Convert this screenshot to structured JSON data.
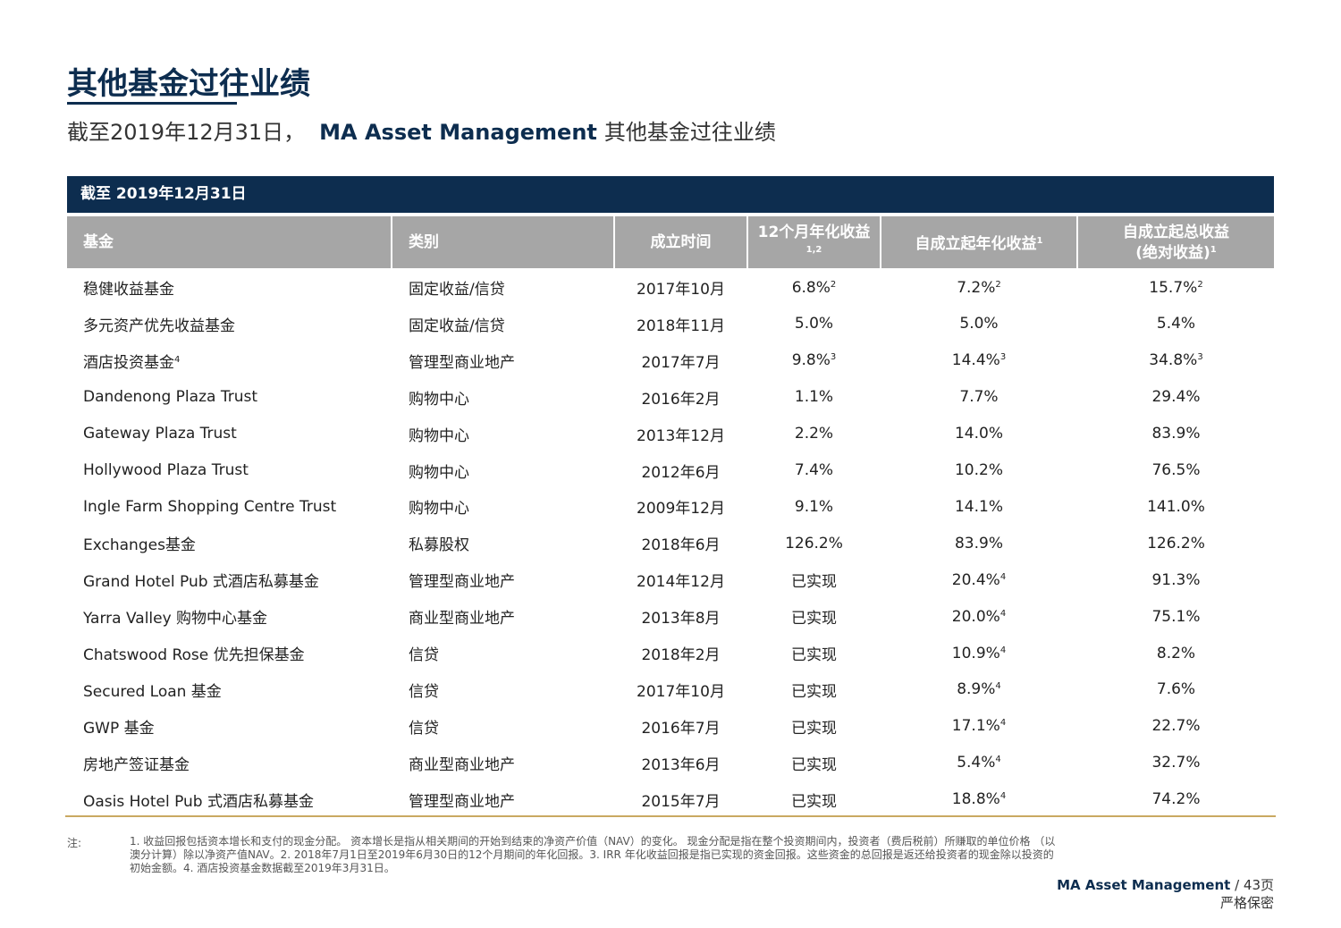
{
  "title": "其他基金过往业绩",
  "subtitle": [
    "截至2019年12月31日，",
    "MA Asset Management",
    "其他基金过往业绩"
  ],
  "table": {
    "banner": "截至 2019年12月31日",
    "header": [
      "基金",
      "类别",
      "成立时间",
      {
        "text": "12个月年化收益",
        "sup": "1,2"
      },
      {
        "text": "自成立起年化收益",
        "sup": "1"
      },
      {
        "lines": [
          "自成立起总收益",
          "(绝对收益)"
        ],
        "sup": "1"
      }
    ],
    "rows": [
      [
        {
          "text": "稳健收益基金"
        },
        "固定收益/信贷",
        "2017年10月",
        {
          "text": "6.8%",
          "sup": "2"
        },
        {
          "text": "7.2%",
          "sup": "2"
        },
        {
          "text": "15.7%",
          "sup": "2"
        }
      ],
      [
        "多元资产优先收益基金",
        "固定收益/信贷",
        "2018年11月",
        "5.0%",
        "5.0%",
        "5.4%"
      ],
      [
        {
          "text": "酒店投资基金",
          "sup": "4"
        },
        "管理型商业地产",
        "2017年7月",
        {
          "text": "9.8%",
          "sup": "3"
        },
        {
          "text": "14.4%",
          "sup": "3"
        },
        {
          "text": "34.8%",
          "sup": "3"
        }
      ],
      [
        "Dandenong Plaza Trust",
        "购物中心",
        "2016年2月",
        "1.1%",
        "7.7%",
        "29.4%"
      ],
      [
        "Gateway Plaza Trust",
        "购物中心",
        "2013年12月",
        "2.2%",
        "14.0%",
        "83.9%"
      ],
      [
        "Hollywood Plaza Trust",
        "购物中心",
        "2012年6月",
        "7.4%",
        "10.2%",
        "76.5%"
      ],
      [
        "Ingle Farm Shopping Centre Trust",
        "购物中心",
        "2009年12月",
        "9.1%",
        "14.1%",
        "141.0%"
      ],
      [
        "Exchanges基金",
        "私募股权",
        "2018年6月",
        "126.2%",
        "83.9%",
        "126.2%"
      ],
      [
        "Grand Hotel Pub 式酒店私募基金",
        "管理型商业地产",
        "2014年12月",
        "已实现",
        {
          "text": "20.4%",
          "sup": "4"
        },
        "91.3%"
      ],
      [
        "Yarra Valley 购物中心基金",
        "商业型商业地产",
        "2013年8月",
        "已实现",
        {
          "text": "20.0%",
          "sup": "4"
        },
        "75.1%"
      ],
      [
        "Chatswood Rose 优先担保基金",
        "信贷",
        "2018年2月",
        "已实现",
        {
          "text": "10.9%",
          "sup": "4"
        },
        "8.2%"
      ],
      [
        "Secured Loan 基金",
        "信贷",
        "2017年10月",
        "已实现",
        {
          "text": "8.9%",
          "sup": "4"
        },
        "7.6%"
      ],
      [
        "GWP 基金",
        "信贷",
        "2016年7月",
        "已实现",
        {
          "text": "17.1%",
          "sup": "4"
        },
        "22.7%"
      ],
      [
        "房地产签证基金",
        "商业型商业地产",
        "2013年6月",
        "已实现",
        {
          "text": "5.4%",
          "sup": "4"
        },
        "32.7%"
      ],
      [
        "Oasis Hotel Pub 式酒店私募基金",
        "管理型商业地产",
        "2015年7月",
        "已实现",
        {
          "text": "18.8%",
          "sup": "4"
        },
        "74.2%"
      ]
    ]
  },
  "notes": {
    "label": "注:",
    "text": "1. 收益回报包括资本增长和支付的现金分配。 资本增长是指从相关期间的开始到结束的净资产价值（NAV）的变化。 现金分配是指在整个投资期间内，投资者（费后税前）所赚取的单位价格 （以澳分计算）除以净资产值NAV。2. 2018年7月1日至2019年6月30日的12个月期间的年化回报。3. IRR 年化收益回报是指已实现的资金回报。这些资金的总回报是返还给投资者的现金除以投资的初始金额。4. 酒店投资基金数据截至2019年3月31日。"
  },
  "footer": {
    "brand": "MA Asset Management",
    "page": "/ 43页",
    "confidential": "严格保密"
  }
}
